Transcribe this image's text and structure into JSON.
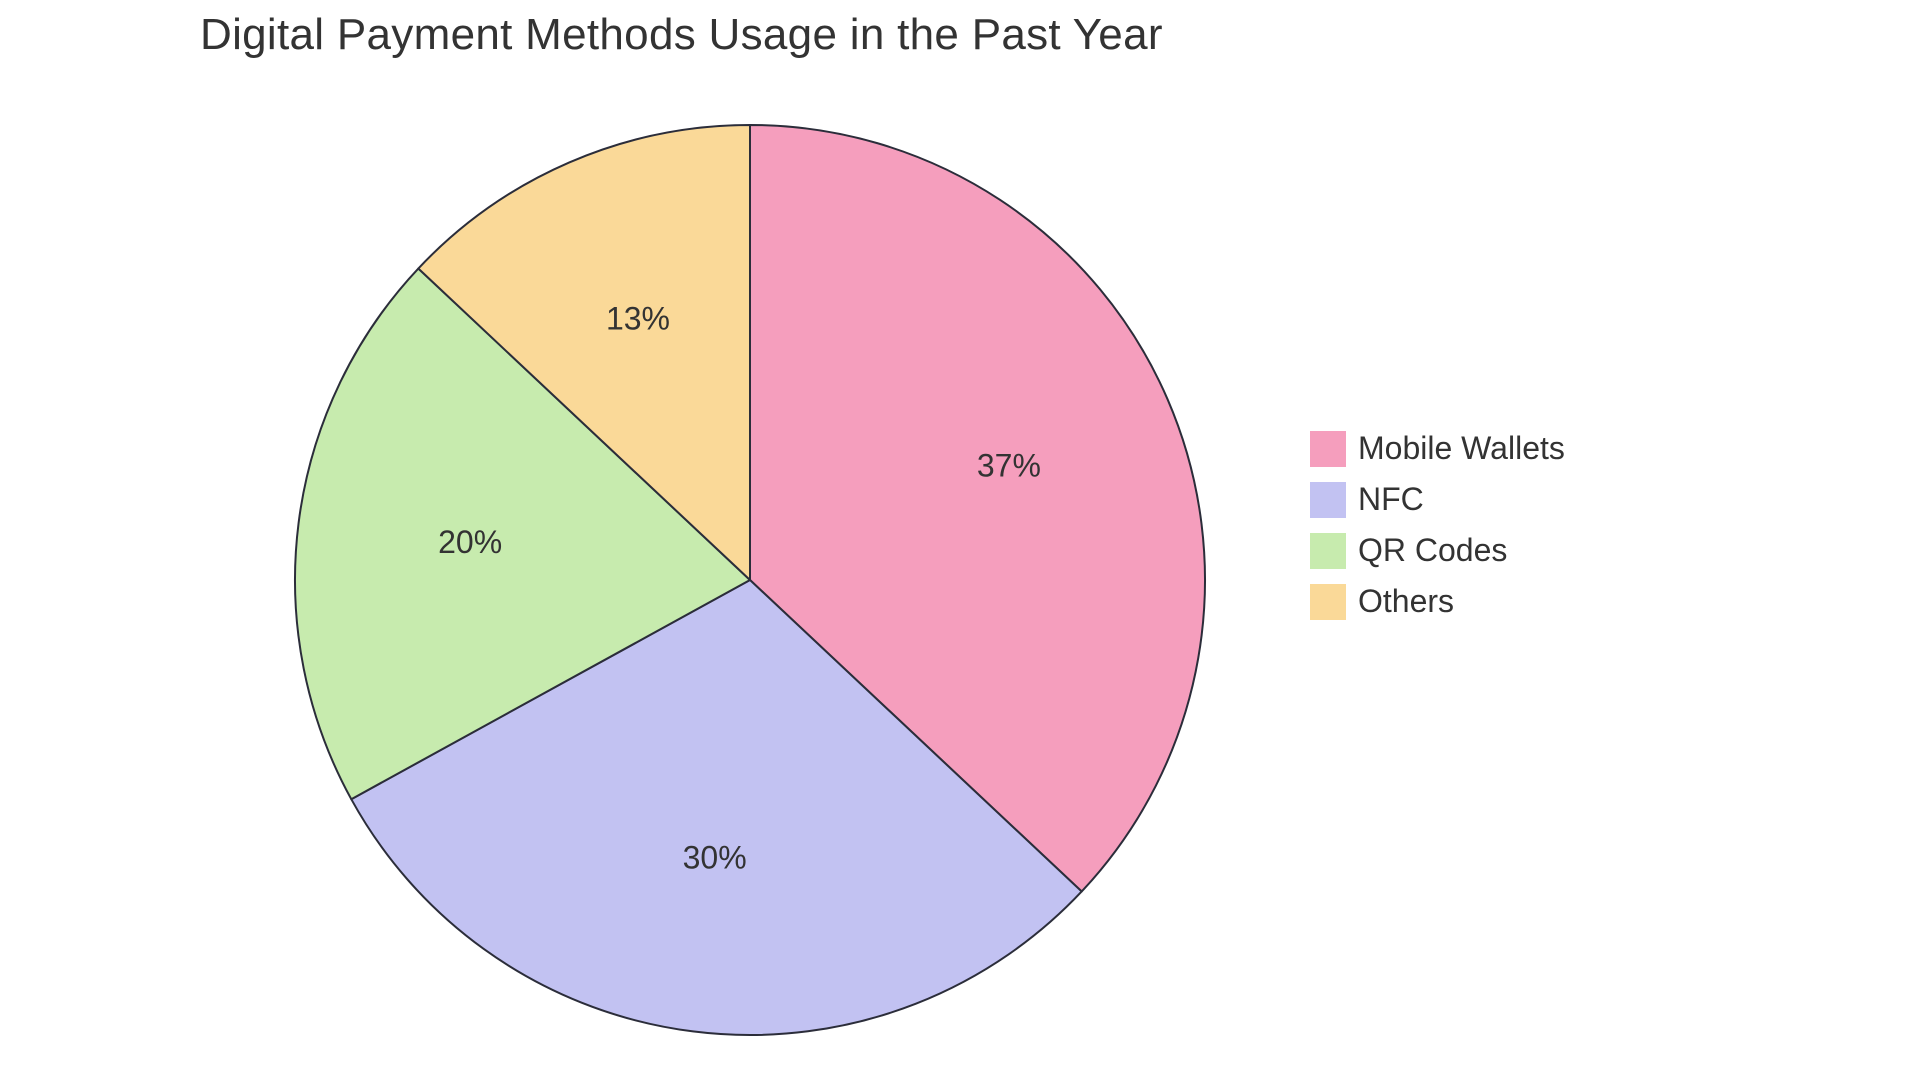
{
  "chart": {
    "type": "pie",
    "title": "Digital Payment Methods Usage in the Past Year",
    "title_fontsize": 44,
    "title_color": "#333333",
    "background_color": "#ffffff",
    "stroke_color": "#2b2d3a",
    "stroke_width": 2,
    "label_fontsize": 32,
    "label_color": "#333333",
    "start_angle_deg": -90,
    "label_radius_ratio": 0.62,
    "slices": [
      {
        "label": "Mobile Wallets",
        "value": 37,
        "display": "37%",
        "color": "#f59ebd"
      },
      {
        "label": "NFC",
        "value": 30,
        "display": "30%",
        "color": "#c2c2f2"
      },
      {
        "label": "QR Codes",
        "value": 20,
        "display": "20%",
        "color": "#c7ebae"
      },
      {
        "label": "Others",
        "value": 13,
        "display": "13%",
        "color": "#fad998"
      }
    ],
    "legend": {
      "fontsize": 32,
      "color": "#333333",
      "swatch_size": 36
    }
  }
}
